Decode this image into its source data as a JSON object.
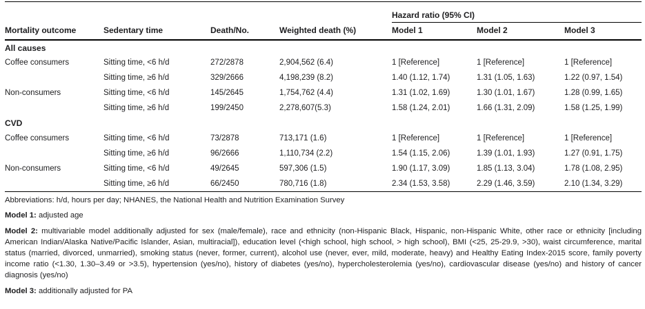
{
  "colors": {
    "text": "#1d1d1f",
    "rule": "#000000",
    "background": "#ffffff"
  },
  "table": {
    "headers": {
      "col1": "Mortality outcome",
      "col2": "Sedentary time",
      "col3": "Death/No.",
      "col4": "Weighted death (%)",
      "hazard_group": "Hazard ratio (95% CI)",
      "model1": "Model 1",
      "model2": "Model 2",
      "model3": "Model 3"
    },
    "sections": [
      {
        "title": "All causes",
        "rows": [
          [
            "Coffee consumers",
            "Sitting time, <6 h/d",
            "272/2878",
            "2,904,562 (6.4)",
            "1 [Reference]",
            "1 [Reference]",
            "1 [Reference]"
          ],
          [
            "",
            "Sitting time, ≥6 h/d",
            "329/2666",
            "4,198,239 (8.2)",
            "1.40 (1.12, 1.74)",
            "1.31 (1.05, 1.63)",
            "1.22 (0.97, 1.54)"
          ],
          [
            "Non-consumers",
            "Sitting time, <6 h/d",
            "145/2645",
            "1,754,762 (4.4)",
            "1.31 (1.02, 1.69)",
            "1.30 (1.01, 1.67)",
            "1.28 (0.99, 1.65)"
          ],
          [
            "",
            "Sitting time, ≥6 h/d",
            "199/2450",
            "2,278,607(5.3)",
            "1.58 (1.24, 2.01)",
            "1.66 (1.31, 2.09)",
            "1.58 (1.25, 1.99)"
          ]
        ]
      },
      {
        "title": "CVD",
        "rows": [
          [
            "Coffee consumers",
            "Sitting time, <6 h/d",
            "73/2878",
            "713,171 (1.6)",
            "1 [Reference]",
            "1 [Reference]",
            "1 [Reference]"
          ],
          [
            "",
            "Sitting time, ≥6 h/d",
            "96/2666",
            "1,110,734 (2.2)",
            "1.54 (1.15, 2.06)",
            "1.39 (1.01, 1.93)",
            "1.27 (0.91, 1.75)"
          ],
          [
            "Non-consumers",
            "Sitting time, <6 h/d",
            "49/2645",
            "597,306 (1.5)",
            "1.90 (1.17, 3.09)",
            "1.85 (1.13, 3.04)",
            "1.78 (1.08, 2.95)"
          ],
          [
            "",
            "Sitting time, ≥6 h/d",
            "66/2450",
            "780,716 (1.8)",
            "2.34 (1.53, 3.58)",
            "2.29 (1.46, 3.59)",
            "2.10 (1.34, 3.29)"
          ]
        ]
      }
    ]
  },
  "footnotes": {
    "abbreviations": "Abbreviations: h/d, hours per day; NHANES, the National Health and Nutrition Examination Survey",
    "model1_label": "Model 1:",
    "model1_text": " adjusted age",
    "model2_label": "Model 2:",
    "model2_text": " multivariable model additionally adjusted for sex (male/female), race and ethnicity (non-Hispanic Black, Hispanic, non-Hispanic White, other race or ethnicity [including American Indian/Alaska Native/Pacific Islander, Asian, multiracial]), education level (<high school, high school, > high school), BMI (<25, 25-29.9, >30), waist circumference, marital status (married, divorced, unmarried), smoking status (never, former, current), alcohol use (never, ever, mild, moderate, heavy) and Healthy Eating Index-2015 score, family poverty income ratio (<1.30, 1.30–3.49 or >3.5), hypertension (yes/no), history of diabetes (yes/no), hypercholesterolemia (yes/no), cardiovascular disease (yes/no) and history of cancer diagnosis (yes/no)",
    "model3_label": "Model 3:",
    "model3_text": " additionally adjusted for PA"
  }
}
